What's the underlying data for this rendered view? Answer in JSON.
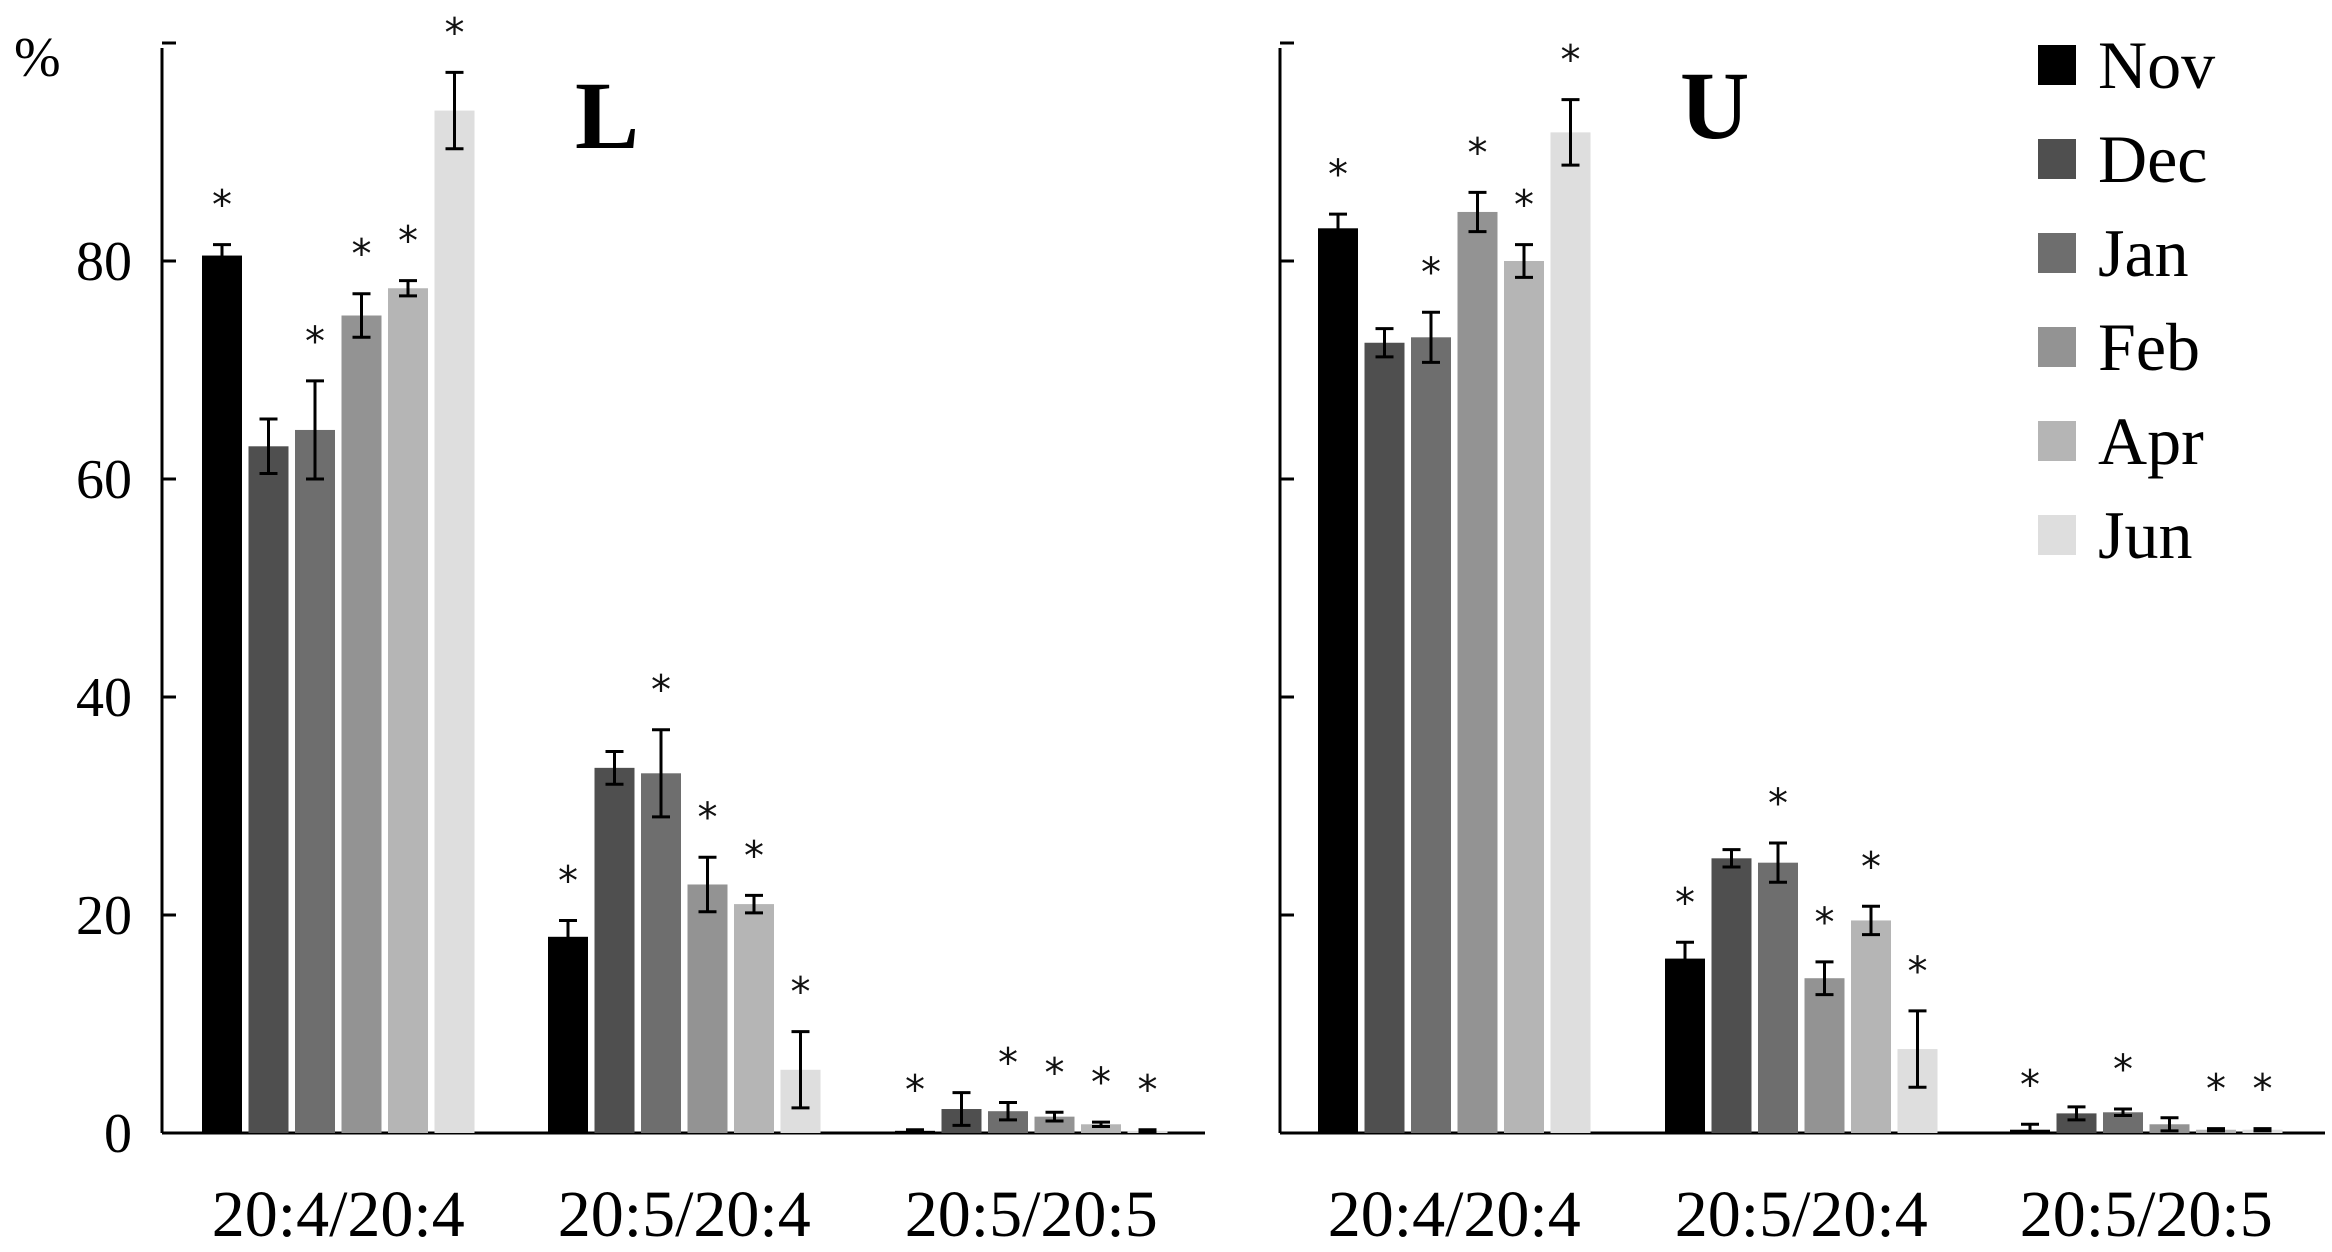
{
  "chart_data": [
    {
      "type": "bar",
      "title": "L",
      "ylabel": "%",
      "ylim": [
        0,
        100
      ],
      "yticks": [
        "0",
        "20",
        "40",
        "60",
        "80"
      ],
      "categories": [
        "20:4/20:4",
        "20:5/20:4",
        "20:5/20:5"
      ],
      "series": [
        {
          "name": "Nov",
          "values": [
            80.5,
            18.0,
            0.2
          ],
          "errors": [
            1.0,
            1.5,
            0.1
          ],
          "significant": [
            true,
            true,
            true
          ]
        },
        {
          "name": "Dec",
          "values": [
            63.0,
            33.5,
            2.2
          ],
          "errors": [
            2.5,
            1.5,
            1.5
          ],
          "significant": [
            false,
            false,
            false
          ]
        },
        {
          "name": "Jan",
          "values": [
            64.5,
            33.0,
            2.0
          ],
          "errors": [
            4.5,
            4.0,
            0.8
          ],
          "significant": [
            true,
            true,
            true
          ]
        },
        {
          "name": "Feb",
          "values": [
            75.0,
            22.8,
            1.5
          ],
          "errors": [
            2.0,
            2.5,
            0.4
          ],
          "significant": [
            true,
            true,
            true
          ]
        },
        {
          "name": "Apr",
          "values": [
            77.5,
            21.0,
            0.8
          ],
          "errors": [
            0.7,
            0.8,
            0.2
          ],
          "significant": [
            true,
            true,
            true
          ]
        },
        {
          "name": "Jun",
          "values": [
            93.8,
            5.8,
            0.2
          ],
          "errors": [
            3.5,
            3.5,
            0.1
          ],
          "significant": [
            true,
            true,
            true
          ]
        }
      ]
    },
    {
      "type": "bar",
      "title": "U",
      "ylabel": "",
      "ylim": [
        0,
        100
      ],
      "yticks": [],
      "categories": [
        "20:4/20:4",
        "20:5/20:4",
        "20:5/20:5"
      ],
      "series": [
        {
          "name": "Nov",
          "values": [
            83.0,
            16.0,
            0.3
          ],
          "errors": [
            1.3,
            1.5,
            0.5
          ],
          "significant": [
            true,
            true,
            true
          ]
        },
        {
          "name": "Dec",
          "values": [
            72.5,
            25.2,
            1.8
          ],
          "errors": [
            1.3,
            0.8,
            0.6
          ],
          "significant": [
            false,
            false,
            false
          ]
        },
        {
          "name": "Jan",
          "values": [
            73.0,
            24.8,
            1.9
          ],
          "errors": [
            2.3,
            1.8,
            0.3
          ],
          "significant": [
            true,
            true,
            true
          ]
        },
        {
          "name": "Feb",
          "values": [
            84.5,
            14.2,
            0.8
          ],
          "errors": [
            1.8,
            1.5,
            0.6
          ],
          "significant": [
            true,
            true,
            false
          ]
        },
        {
          "name": "Apr",
          "values": [
            80.0,
            19.5,
            0.3
          ],
          "errors": [
            1.5,
            1.3,
            0.1
          ],
          "significant": [
            true,
            true,
            true
          ]
        },
        {
          "name": "Jun",
          "values": [
            91.8,
            7.7,
            0.3
          ],
          "errors": [
            3.0,
            3.5,
            0.1
          ],
          "significant": [
            true,
            true,
            true
          ]
        }
      ]
    }
  ],
  "legend": {
    "placement": "top-right",
    "items": [
      {
        "label": "Nov",
        "color": "#000000"
      },
      {
        "label": "Dec",
        "color": "#4f4f4f"
      },
      {
        "label": "Jan",
        "color": "#6e6e6e"
      },
      {
        "label": "Feb",
        "color": "#939393"
      },
      {
        "label": "Apr",
        "color": "#b5b5b5"
      },
      {
        "label": "Jun",
        "color": "#dedede"
      }
    ]
  },
  "significance_marker": "*"
}
